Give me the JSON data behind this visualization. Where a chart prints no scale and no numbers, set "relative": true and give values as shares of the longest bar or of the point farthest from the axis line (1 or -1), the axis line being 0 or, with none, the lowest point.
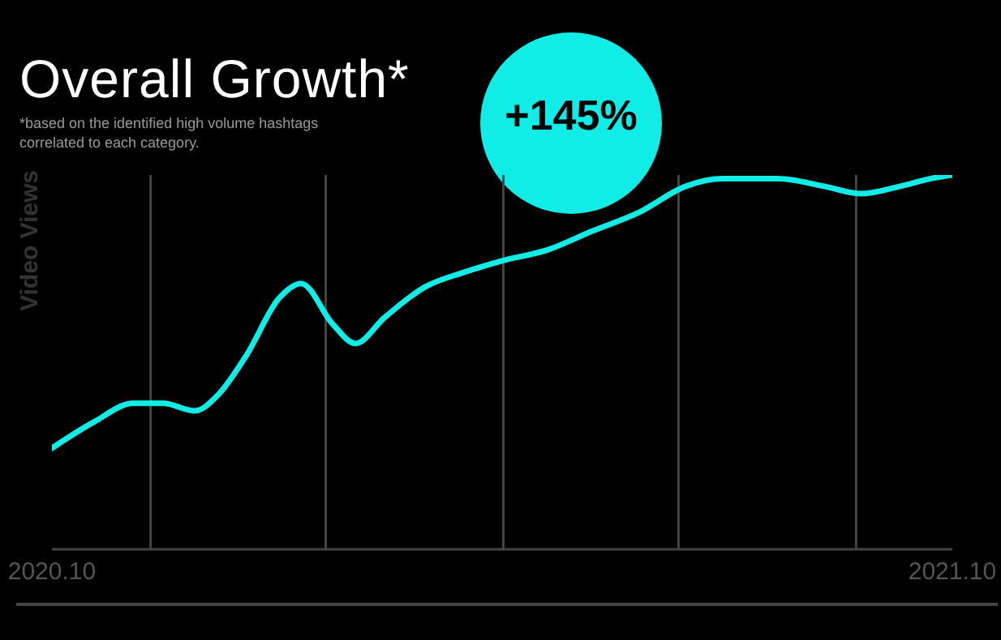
{
  "chart_data": {
    "type": "line",
    "title": "Overall Growth*",
    "subtitle": "*based on the identified high volume hashtags correlated to each category.",
    "ylabel": "Video Views",
    "annotations": [
      "+145%"
    ],
    "relative": true,
    "x": [
      "2020-10-01",
      "2020-10-18",
      "2020-11-03",
      "2020-11-15",
      "2020-11-28",
      "2020-12-07",
      "2020-12-19",
      "2021-01-01",
      "2021-01-10",
      "2021-01-23",
      "2021-02-01",
      "2021-02-13",
      "2021-03-01",
      "2021-03-17",
      "2021-04-01",
      "2021-04-20",
      "2021-05-08",
      "2021-05-27",
      "2021-06-15",
      "2021-06-30",
      "2021-07-22",
      "2021-08-10",
      "2021-08-25",
      "2021-09-10",
      "2021-09-22",
      "2021-10-01"
    ],
    "xlim": [
      "2020-10-01",
      "2021-10-01"
    ],
    "xticks": [
      {
        "value": "2020-10-01",
        "label": "2020.10"
      },
      {
        "value": "2020-11-10",
        "label": null
      },
      {
        "value": "2021-01-20",
        "label": null
      },
      {
        "value": "2021-04-02",
        "label": null
      },
      {
        "value": "2021-06-12",
        "label": null
      },
      {
        "value": "2021-08-23",
        "label": null
      },
      {
        "value": "2021-10-01",
        "label": "2021.10"
      }
    ],
    "grid": "x",
    "legend": false,
    "marker": "none",
    "line_style": "solid",
    "series": [
      {
        "color": "#10ece6",
        "values": [
          0.27,
          0.34,
          0.39,
          0.39,
          0.37,
          0.41,
          0.52,
          0.67,
          0.71,
          0.6,
          0.55,
          0.62,
          0.7,
          0.74,
          0.77,
          0.8,
          0.85,
          0.9,
          0.97,
          0.99,
          0.99,
          0.97,
          0.95,
          0.97,
          0.99,
          1
        ]
      }
    ]
  }
}
